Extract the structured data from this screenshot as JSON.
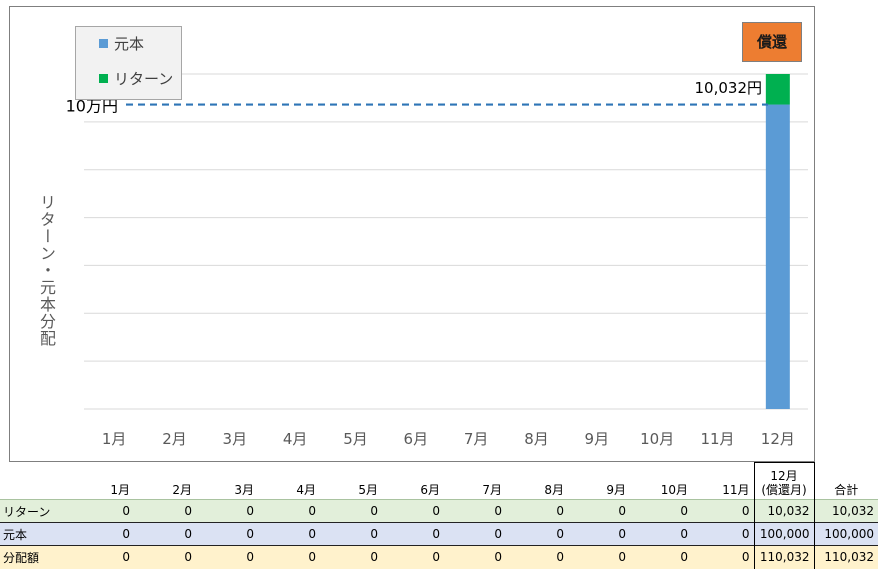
{
  "chart_data": {
    "type": "bar",
    "stacked": true,
    "categories": [
      "1月",
      "2月",
      "3月",
      "4月",
      "5月",
      "6月",
      "7月",
      "8月",
      "9月",
      "10月",
      "11月",
      "12月"
    ],
    "series": [
      {
        "name": "元本",
        "color": "#5b9bd5",
        "values": [
          0,
          0,
          0,
          0,
          0,
          0,
          0,
          0,
          0,
          0,
          0,
          100000
        ]
      },
      {
        "name": "リターン",
        "color": "#00b050",
        "values": [
          0,
          0,
          0,
          0,
          0,
          0,
          0,
          0,
          0,
          0,
          0,
          10032
        ]
      }
    ],
    "ylabel": "リターン・元本分配",
    "ylim": [
      0,
      110032
    ],
    "reference_line": {
      "value": 100000,
      "label": "10万円",
      "color": "#2e75b6",
      "style": "dashed"
    },
    "bar_annotation": "10,032円",
    "badge": "償還",
    "legend_position": "top-left",
    "grid": true
  },
  "table": {
    "headers": [
      "",
      "1月",
      "2月",
      "3月",
      "4月",
      "5月",
      "6月",
      "7月",
      "8月",
      "9月",
      "10月",
      "11月",
      "12月",
      "(償還月)",
      "合計"
    ],
    "rows": [
      {
        "label": "リターン",
        "values": [
          "0",
          "0",
          "0",
          "0",
          "0",
          "0",
          "0",
          "0",
          "0",
          "0",
          "0",
          "10,032"
        ],
        "total": "10,032"
      },
      {
        "label": "元本",
        "values": [
          "0",
          "0",
          "0",
          "0",
          "0",
          "0",
          "0",
          "0",
          "0",
          "0",
          "0",
          "100,000"
        ],
        "total": "100,000"
      },
      {
        "label": "分配額",
        "values": [
          "0",
          "0",
          "0",
          "0",
          "0",
          "0",
          "0",
          "0",
          "0",
          "0",
          "0",
          "110,032"
        ],
        "total": "110,032"
      }
    ]
  },
  "colors": {
    "principal": "#5b9bd5",
    "return": "#00b050",
    "badge": "#ed7d31",
    "reference": "#2e75b6"
  }
}
